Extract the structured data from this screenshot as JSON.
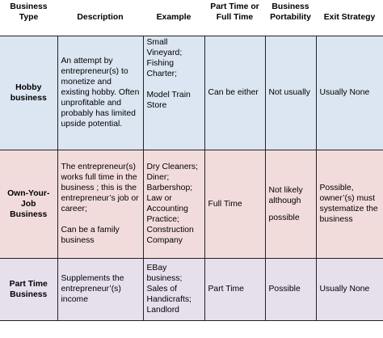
{
  "headers": {
    "type": "Business Type",
    "description": "Description",
    "example": "Example",
    "time": "Part Time or Full Time",
    "portability": "Business Portability",
    "exit": "Exit Strategy"
  },
  "rows": [
    {
      "type": "Hobby business",
      "description": [
        "An attempt by entrepreneur(s) to monetize and existing hobby. Often unprofitable and probably has limited upside potential."
      ],
      "example": [
        "Small Vineyard; Fishing Charter;",
        "Model Train Store"
      ],
      "time": "Can be either",
      "portability": [
        "Not usually"
      ],
      "exit": "Usually None"
    },
    {
      "type": "Own-Your-Job Business",
      "description": [
        "The entrepreneur(s) works full time in the business ; this is the entrepreneur’s job or career;",
        "Can be a family business"
      ],
      "example": [
        "Dry Cleaners; Diner; Barbershop; Law or Accounting Practice; Construction Company"
      ],
      "time": "Full Time",
      "portability": [
        "Not likely although",
        "possible"
      ],
      "exit": "Possible, owner’(s) must systematize the business"
    },
    {
      "type": "Part Time Business",
      "description": [
        "Supplements the entrepreneur’(s) income"
      ],
      "example": [
        "EBay business; Sales of Handicrafts; Landlord"
      ],
      "time": "Part Time",
      "portability": [
        "Possible"
      ],
      "exit": "Usually None"
    }
  ]
}
